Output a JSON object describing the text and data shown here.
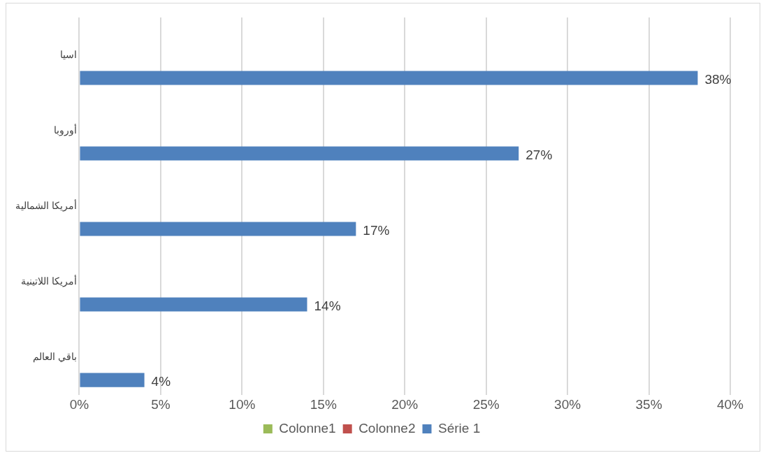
{
  "chart_data": {
    "type": "bar",
    "orientation": "horizontal",
    "categories": [
      "اسيا",
      "أوروبا",
      "أمريكا الشمالية",
      "أمريكا اللاتينية",
      "باقي العالم"
    ],
    "series": [
      {
        "name": "Colonne1",
        "color": "#9bbb59",
        "values": [
          null,
          null,
          null,
          null,
          null
        ]
      },
      {
        "name": "Colonne2",
        "color": "#c0504d",
        "values": [
          null,
          null,
          null,
          null,
          null
        ]
      },
      {
        "name": "Série 1",
        "color": "#4f81bd",
        "values": [
          38,
          27,
          17,
          14,
          4
        ],
        "value_labels": [
          "38%",
          "27%",
          "17%",
          "14%",
          "4%"
        ]
      }
    ],
    "xlim": [
      0,
      40
    ],
    "xticks": [
      {
        "value": 0,
        "label": "0%"
      },
      {
        "value": 5,
        "label": "5%"
      },
      {
        "value": 10,
        "label": "10%"
      },
      {
        "value": 15,
        "label": "15%"
      },
      {
        "value": 20,
        "label": "20%"
      },
      {
        "value": 25,
        "label": "25%"
      },
      {
        "value": 30,
        "label": "30%"
      },
      {
        "value": 35,
        "label": "35%"
      },
      {
        "value": 40,
        "label": "40%"
      }
    ],
    "grid": "x",
    "legend": "bottom"
  }
}
